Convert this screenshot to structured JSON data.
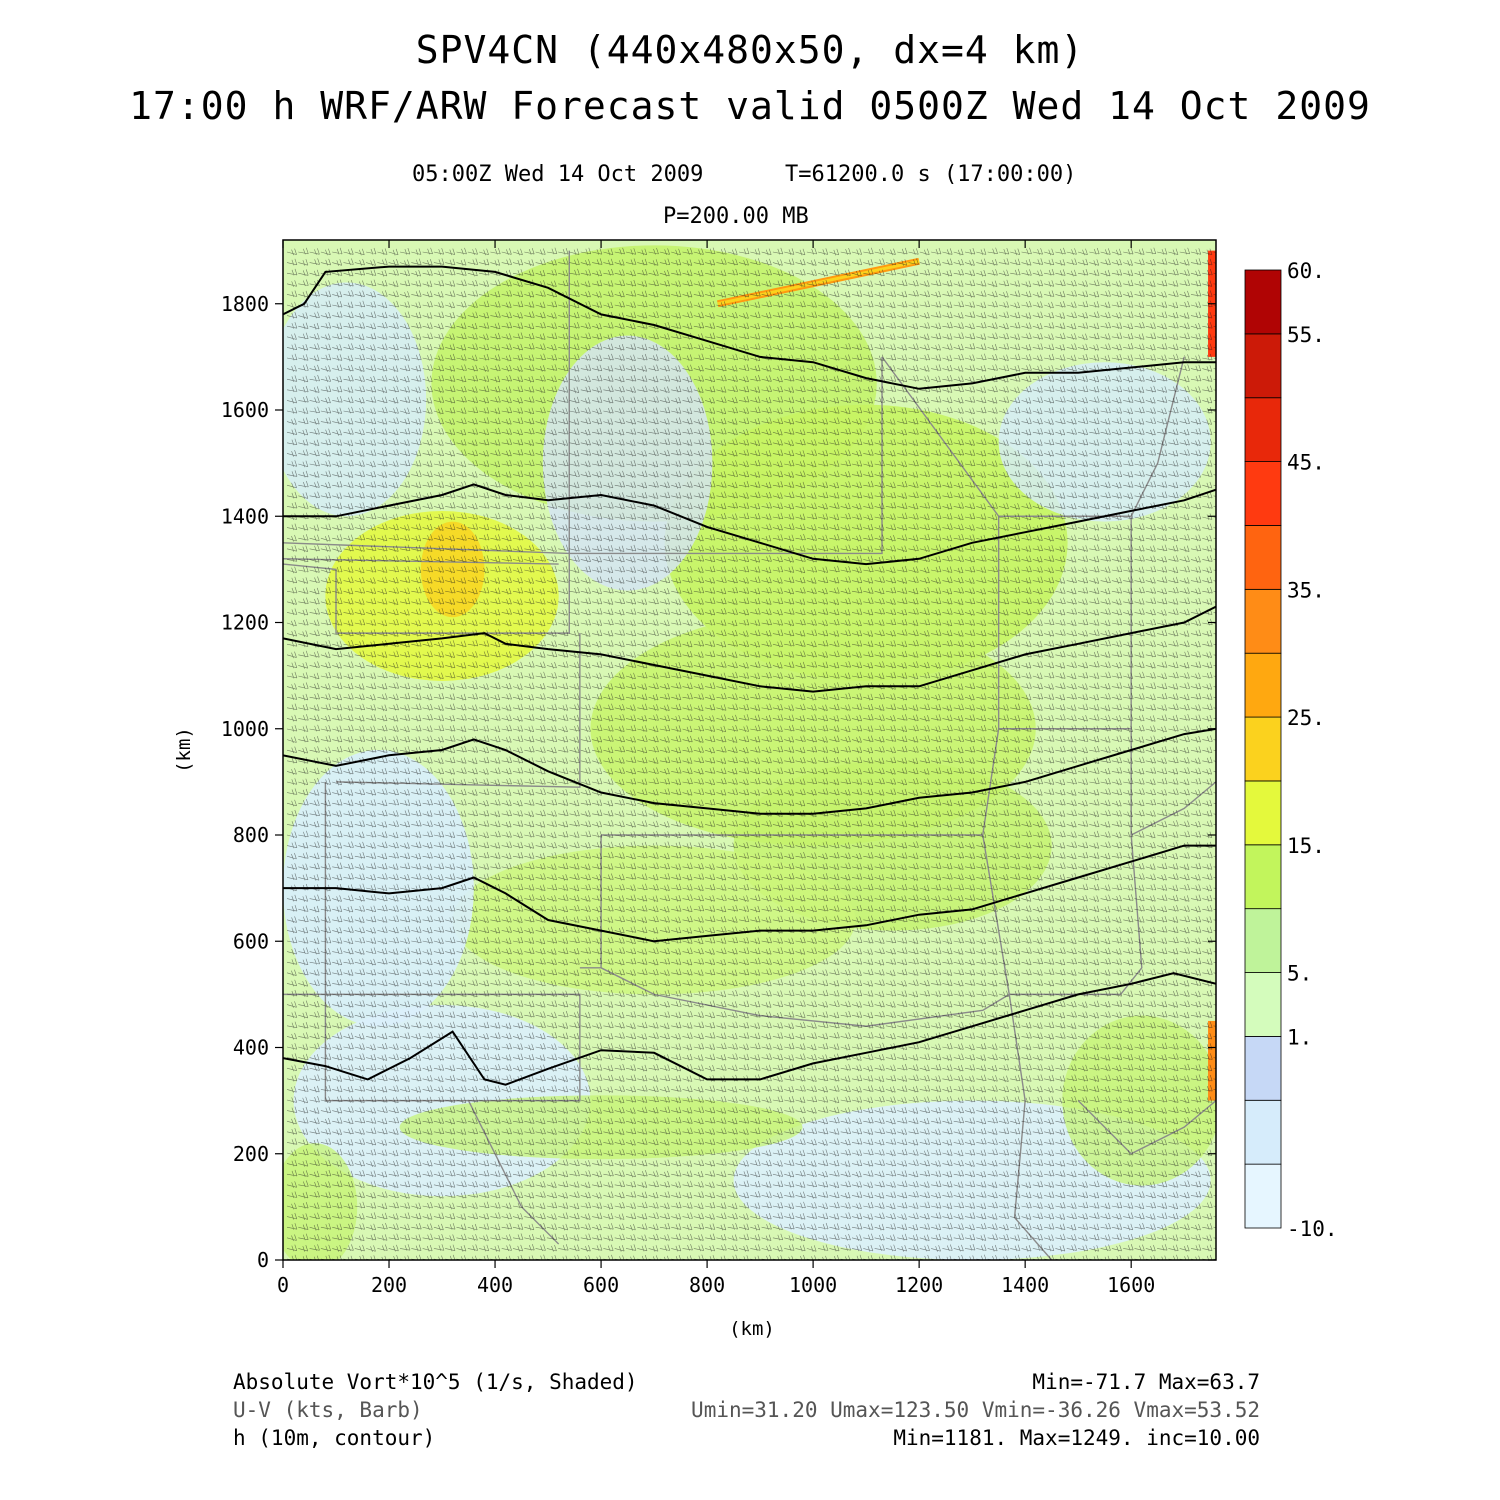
{
  "header": {
    "title_line1": "SPV4CN (440x480x50, dx=4 km)",
    "title_line2": "17:00 h WRF/ARW Forecast valid 0500Z Wed 14 Oct 2009",
    "valid_time": "05:00Z Wed 14 Oct 2009",
    "model_time": "T=61200.0 s (17:00:00)",
    "level": "P=200.00 MB"
  },
  "footer": {
    "shaded_field": "Absolute Vort*10^5 (1/s, Shaded)",
    "barb_field": "U-V (kts, Barb)",
    "contour_field": "h (10m, contour)",
    "shaded_stats": "Min=-71.7 Max=63.7",
    "barb_stats": "Umin=31.20 Umax=123.50 Vmin=-36.26 Vmax=53.52",
    "contour_stats": "Min=1181. Max=1249. inc=10.00"
  },
  "chart_data": {
    "type": "heatmap",
    "xlabel": "(km)",
    "ylabel": "(km)",
    "xlim": [
      0,
      1760
    ],
    "ylim": [
      0,
      1920
    ],
    "xticks": [
      0,
      200,
      400,
      600,
      800,
      1000,
      1200,
      1400,
      1600
    ],
    "yticks": [
      0,
      200,
      400,
      600,
      800,
      1000,
      1200,
      1400,
      1600,
      1800
    ],
    "colorbar": {
      "labels": [
        "60.",
        "55.",
        "45.",
        "35.",
        "25.",
        "15.",
        "5.",
        "1.",
        "-10."
      ],
      "label_levels": [
        60,
        55,
        45,
        35,
        25,
        15,
        5,
        1,
        -10
      ],
      "levels": [
        -10,
        -5,
        0,
        1,
        5,
        10,
        15,
        20,
        25,
        30,
        35,
        40,
        45,
        50,
        55,
        60
      ],
      "colors": [
        "#e6f6ff",
        "#d6ecfb",
        "#c6d8f6",
        "#d4fcbc",
        "#bff39a",
        "#c2f55c",
        "#e4f93c",
        "#fbd21e",
        "#ffa810",
        "#ff8c16",
        "#ff6410",
        "#ff3a10",
        "#e8280a",
        "#cc1a08",
        "#b00404"
      ]
    },
    "contours": {
      "variable": "h",
      "min": 1181,
      "max": 1249,
      "inc": 10,
      "lines": [
        {
          "points": [
            [
              0,
              380
            ],
            [
              80,
              365
            ],
            [
              160,
              340
            ],
            [
              240,
              380
            ],
            [
              320,
              430
            ],
            [
              380,
              340
            ],
            [
              420,
              330
            ],
            [
              500,
              360
            ],
            [
              600,
              395
            ],
            [
              700,
              390
            ],
            [
              800,
              340
            ],
            [
              900,
              340
            ],
            [
              1000,
              370
            ],
            [
              1100,
              390
            ],
            [
              1200,
              410
            ],
            [
              1300,
              440
            ],
            [
              1400,
              470
            ],
            [
              1500,
              500
            ],
            [
              1600,
              520
            ],
            [
              1680,
              540
            ],
            [
              1760,
              520
            ]
          ]
        },
        {
          "points": [
            [
              0,
              700
            ],
            [
              100,
              700
            ],
            [
              200,
              690
            ],
            [
              300,
              700
            ],
            [
              360,
              720
            ],
            [
              420,
              690
            ],
            [
              500,
              640
            ],
            [
              600,
              620
            ],
            [
              700,
              600
            ],
            [
              800,
              610
            ],
            [
              900,
              620
            ],
            [
              1000,
              620
            ],
            [
              1100,
              630
            ],
            [
              1200,
              650
            ],
            [
              1300,
              660
            ],
            [
              1400,
              690
            ],
            [
              1500,
              720
            ],
            [
              1600,
              750
            ],
            [
              1700,
              780
            ],
            [
              1760,
              780
            ]
          ]
        },
        {
          "points": [
            [
              0,
              950
            ],
            [
              100,
              930
            ],
            [
              200,
              950
            ],
            [
              300,
              960
            ],
            [
              360,
              980
            ],
            [
              420,
              960
            ],
            [
              500,
              920
            ],
            [
              600,
              880
            ],
            [
              700,
              860
            ],
            [
              800,
              850
            ],
            [
              900,
              840
            ],
            [
              1000,
              840
            ],
            [
              1100,
              850
            ],
            [
              1200,
              870
            ],
            [
              1300,
              880
            ],
            [
              1400,
              900
            ],
            [
              1500,
              930
            ],
            [
              1600,
              960
            ],
            [
              1700,
              990
            ],
            [
              1760,
              1000
            ]
          ]
        },
        {
          "points": [
            [
              0,
              1170
            ],
            [
              100,
              1150
            ],
            [
              200,
              1160
            ],
            [
              300,
              1170
            ],
            [
              380,
              1180
            ],
            [
              420,
              1160
            ],
            [
              500,
              1150
            ],
            [
              600,
              1140
            ],
            [
              700,
              1120
            ],
            [
              800,
              1100
            ],
            [
              900,
              1080
            ],
            [
              1000,
              1070
            ],
            [
              1100,
              1080
            ],
            [
              1200,
              1080
            ],
            [
              1300,
              1110
            ],
            [
              1400,
              1140
            ],
            [
              1500,
              1160
            ],
            [
              1600,
              1180
            ],
            [
              1700,
              1200
            ],
            [
              1760,
              1230
            ]
          ]
        },
        {
          "points": [
            [
              0,
              1400
            ],
            [
              100,
              1400
            ],
            [
              200,
              1420
            ],
            [
              300,
              1440
            ],
            [
              360,
              1460
            ],
            [
              420,
              1440
            ],
            [
              500,
              1430
            ],
            [
              600,
              1440
            ],
            [
              700,
              1420
            ],
            [
              800,
              1380
            ],
            [
              900,
              1350
            ],
            [
              1000,
              1320
            ],
            [
              1100,
              1310
            ],
            [
              1200,
              1320
            ],
            [
              1300,
              1350
            ],
            [
              1400,
              1370
            ],
            [
              1500,
              1390
            ],
            [
              1600,
              1410
            ],
            [
              1700,
              1430
            ],
            [
              1760,
              1450
            ]
          ]
        },
        {
          "points": [
            [
              0,
              1780
            ],
            [
              40,
              1800
            ],
            [
              80,
              1860
            ],
            [
              200,
              1870
            ],
            [
              300,
              1870
            ],
            [
              400,
              1860
            ],
            [
              500,
              1830
            ],
            [
              600,
              1780
            ],
            [
              700,
              1760
            ],
            [
              800,
              1730
            ],
            [
              900,
              1700
            ],
            [
              1000,
              1690
            ],
            [
              1100,
              1660
            ],
            [
              1200,
              1640
            ],
            [
              1300,
              1650
            ],
            [
              1400,
              1670
            ],
            [
              1500,
              1670
            ],
            [
              1600,
              1680
            ],
            [
              1700,
              1690
            ],
            [
              1760,
              1690
            ]
          ]
        }
      ]
    },
    "barbs": {
      "variable": "U-V",
      "units": "kts",
      "umin": 31.2,
      "umax": 123.5,
      "vmin": -36.26,
      "vmax": 53.52
    },
    "vorticity": {
      "min": -71.7,
      "max": 63.7
    }
  }
}
